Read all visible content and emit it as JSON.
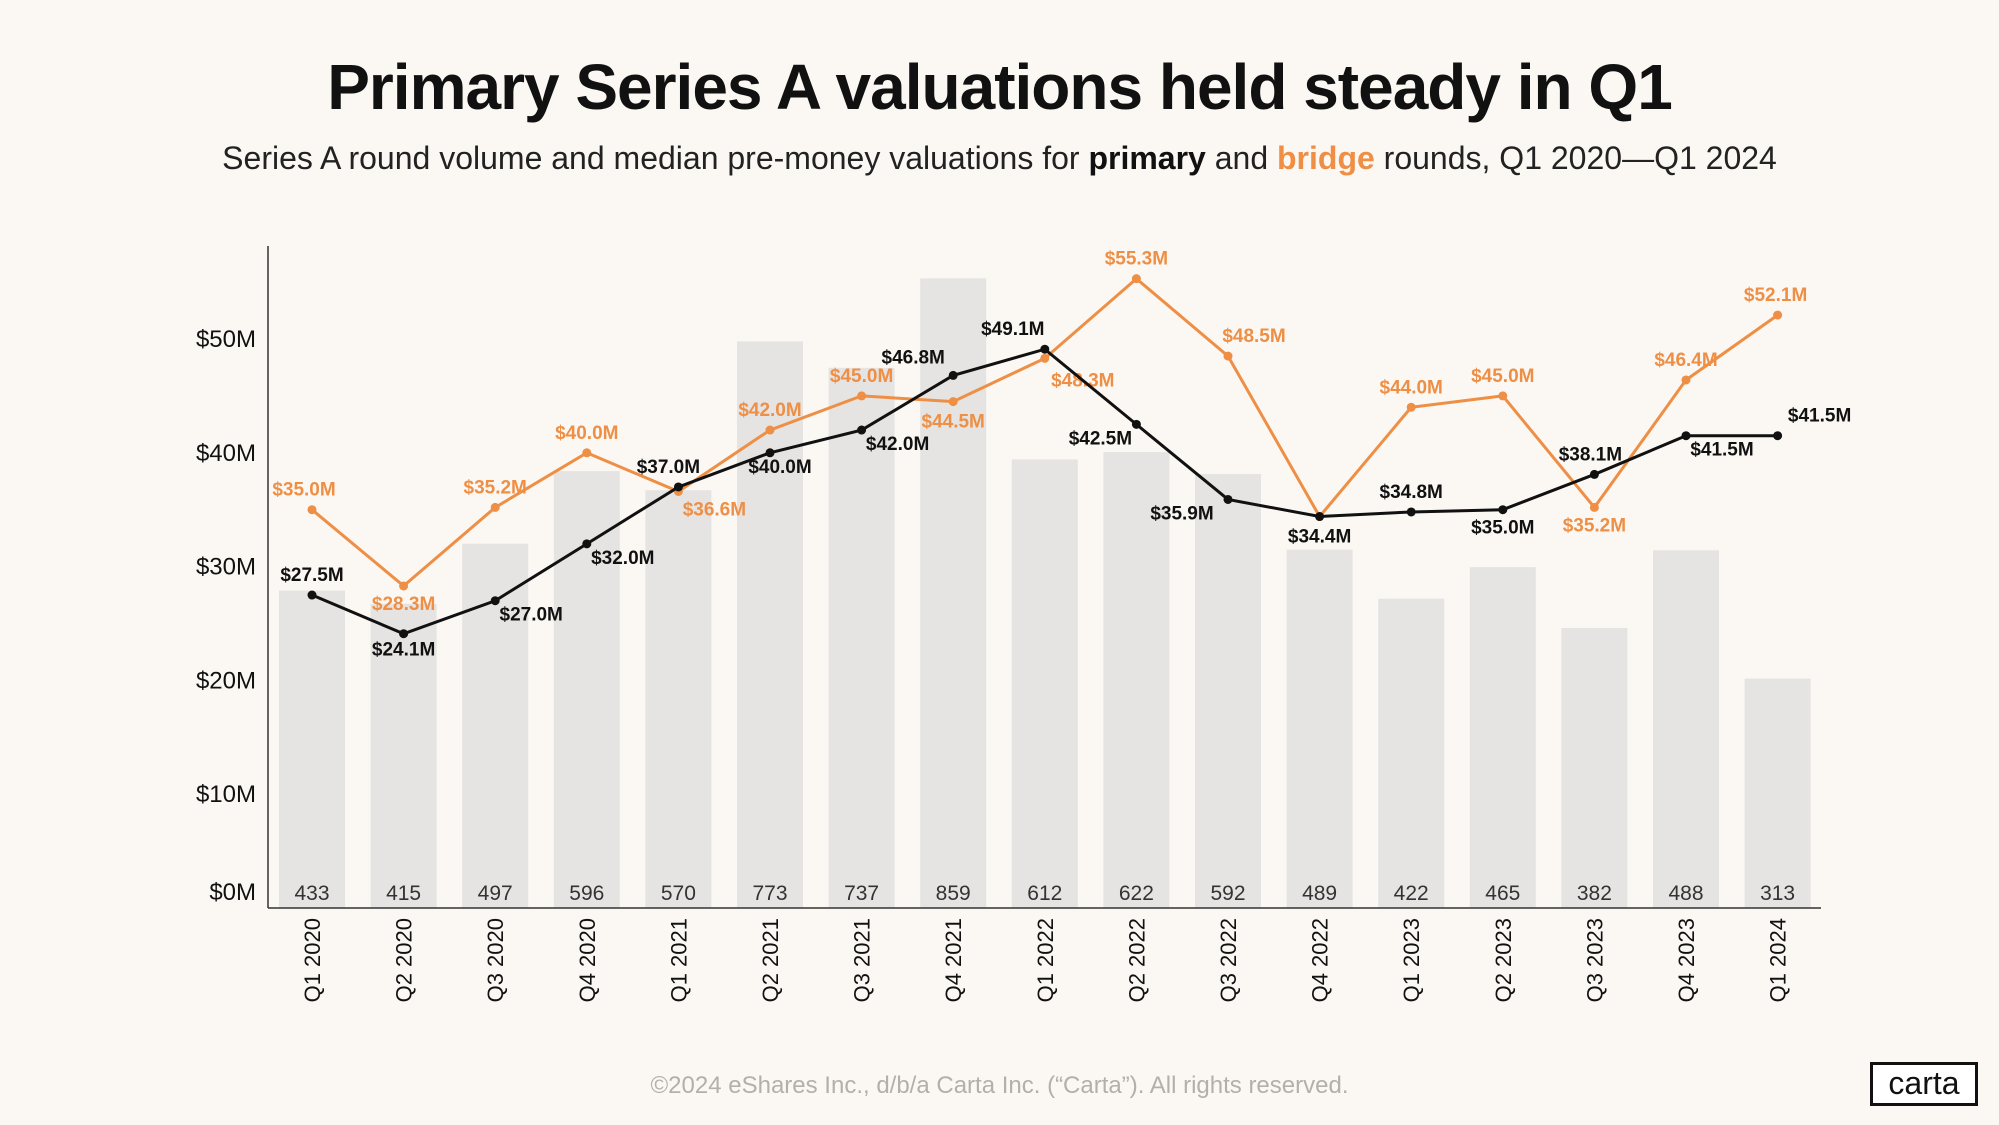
{
  "title": "Primary Series A valuations held steady in Q1",
  "subtitle": {
    "prefix": "Series A round volume and median pre-money valuations for ",
    "primary": "primary",
    "and": " and ",
    "bridge": "bridge",
    "suffix": " rounds, Q1 2020—Q1 2024"
  },
  "footer": "©2024 eShares Inc., d/b/a Carta Inc. (“Carta”). All rights reserved.",
  "logo": "carta",
  "colors": {
    "primary": "#111111",
    "bridge": "#ee8f45",
    "bars": "#e5e4e2",
    "background": "#fbf8f4"
  },
  "chart_data": {
    "type": "bar+line",
    "categories": [
      "Q1 2020",
      "Q2 2020",
      "Q3 2020",
      "Q4 2020",
      "Q1 2021",
      "Q2 2021",
      "Q3 2021",
      "Q4 2021",
      "Q1 2022",
      "Q2 2022",
      "Q3 2022",
      "Q4 2022",
      "Q1 2023",
      "Q2 2023",
      "Q3 2023",
      "Q4 2023",
      "Q1 2024"
    ],
    "yticks": [
      "$0M",
      "$10M",
      "$20M",
      "$30M",
      "$40M",
      "$50M"
    ],
    "ylim": [
      0,
      58
    ],
    "grid": false,
    "bars": {
      "name": "round volume",
      "values": [
        433,
        415,
        497,
        596,
        570,
        773,
        737,
        859,
        612,
        622,
        592,
        489,
        422,
        465,
        382,
        488,
        313
      ]
    },
    "series": [
      {
        "name": "primary",
        "values": [
          27.5,
          24.1,
          27.0,
          32.0,
          37.0,
          40.0,
          42.0,
          46.8,
          49.1,
          42.5,
          35.9,
          34.4,
          34.8,
          35.0,
          38.1,
          41.5,
          41.5
        ],
        "labels": [
          "$27.5M",
          "$24.1M",
          "$27.0M",
          "$32.0M",
          "$37.0M",
          "$40.0M",
          "$42.0M",
          "$46.8M",
          "$49.1M",
          "$42.5M",
          "$35.9M",
          "$34.4M",
          "$34.8M",
          "$35.0M",
          "$38.1M",
          "$41.5M",
          "$41.5M"
        ]
      },
      {
        "name": "bridge",
        "values": [
          35.0,
          28.3,
          35.2,
          40.0,
          36.6,
          42.0,
          45.0,
          44.5,
          48.3,
          55.3,
          48.5,
          34.4,
          44.0,
          45.0,
          35.2,
          46.4,
          52.1
        ],
        "labels": [
          "$35.0M",
          "$28.3M",
          "$35.2M",
          "$40.0M",
          "$36.6M",
          "$42.0M",
          "$45.0M",
          "$44.5M",
          "$48.3M",
          "$55.3M",
          "$48.5M",
          "",
          "$44.0M",
          "$45.0M",
          "$35.2M",
          "$46.4M",
          "$52.1M"
        ]
      }
    ]
  }
}
